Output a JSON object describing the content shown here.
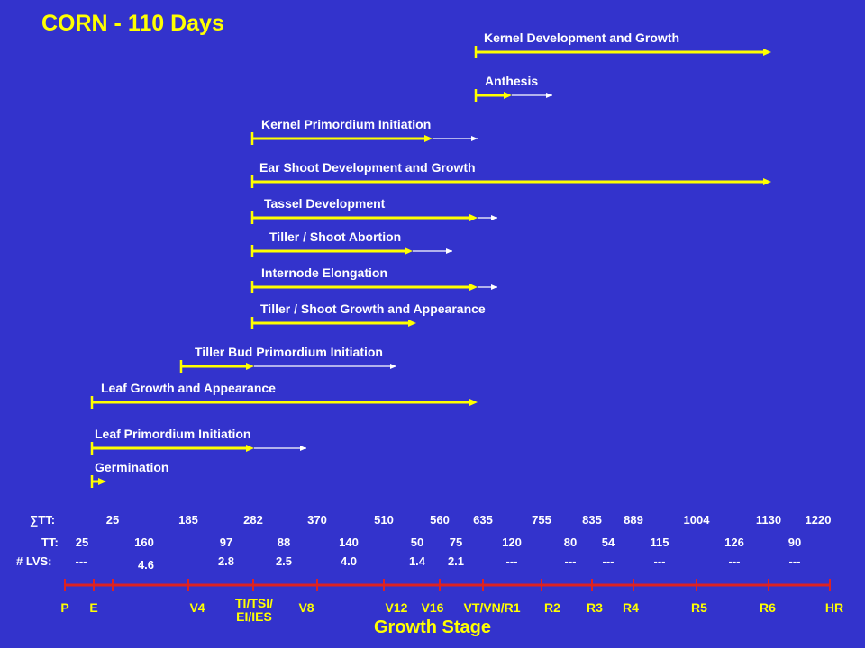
{
  "title": "CORN - 110 Days",
  "footer": "Growth Stage",
  "colors": {
    "background": "#3333cc",
    "bar": "#ffff00",
    "thin": "#ffffff",
    "scale": "#dd2222",
    "text": "#ffffff",
    "stage": "#ffff00"
  },
  "processes": [
    {
      "label": "Kernel Development and Growth",
      "start_stage": "VT/VN/R1",
      "bold_end_stage": "R6",
      "thin_end_stage": "R6"
    },
    {
      "label": "Anthesis",
      "start_stage": "VT/VN/R1",
      "bold_end_stage": "R2-",
      "thin_end_stage": "R2"
    },
    {
      "label": "Kernel Primordium Initiation",
      "start_stage": "TI/TSI/EI/IES",
      "bold_end_stage": "V16",
      "thin_end_stage": "VT/VN/R1"
    },
    {
      "label": "Ear Shoot Development and Growth",
      "start_stage": "TI/TSI/EI/IES",
      "bold_end_stage": "R6",
      "thin_end_stage": "R6"
    },
    {
      "label": "Tassel Development",
      "start_stage": "TI/TSI/EI/IES",
      "bold_end_stage": "VT/VN/R1",
      "thin_end_stage": "VT/VN/R1+"
    },
    {
      "label": "Tiller / Shoot Abortion",
      "start_stage": "TI/TSI/EI/IES",
      "bold_end_stage": "V16-",
      "thin_end_stage": "V16+"
    },
    {
      "label": "Internode Elongation",
      "start_stage": "TI/TSI/EI/IES",
      "bold_end_stage": "VT/VN/R1",
      "thin_end_stage": "VT/VN/R1+"
    },
    {
      "label": "Tiller / Shoot Growth and Appearance",
      "start_stage": "TI/TSI/EI/IES",
      "bold_end_stage": "V12+",
      "thin_end_stage": "V12+"
    },
    {
      "label": "Tiller Bud Primordium Initiation",
      "start_stage": "V4",
      "bold_end_stage": "TI/TSI/EI/IES",
      "thin_end_stage": "V12"
    },
    {
      "label": "Leaf Growth and Appearance",
      "start_stage": "E",
      "bold_end_stage": "VT/VN/R1",
      "thin_end_stage": "VT/VN/R1"
    },
    {
      "label": "Leaf Primordium Initiation",
      "start_stage": "E",
      "bold_end_stage": "TI/TSI/EI/IES",
      "thin_end_stage": "V8"
    },
    {
      "label": "Germination",
      "start_stage": "E",
      "bold_end_stage": "E+",
      "thin_end_stage": "E+"
    }
  ],
  "rows": {
    "sum_tt": {
      "label": "∑TT:",
      "values": [
        "25",
        "185",
        "282",
        "370",
        "510",
        "560",
        "635",
        "755",
        "835",
        "889",
        "1004",
        "1130",
        "1220"
      ]
    },
    "tt": {
      "label": "TT:",
      "values": [
        "25",
        "160",
        "97",
        "88",
        "140",
        "50",
        "75",
        "120",
        "80",
        "54",
        "115",
        "126",
        "90"
      ]
    },
    "lvs": {
      "label": "# LVS:",
      "values": [
        "---",
        "4.6",
        "2.8",
        "2.5",
        "4.0",
        "1.4",
        "2.1",
        "---",
        "---",
        "---",
        "---",
        "---",
        "---"
      ]
    }
  },
  "stages": [
    "P",
    "E",
    "V4",
    "TI/TSI/\nEI/IES",
    "V8",
    "V12",
    "V16",
    "VT/VN/R1",
    "R2",
    "R3",
    "R4",
    "R5",
    "R6",
    "HR"
  ]
}
